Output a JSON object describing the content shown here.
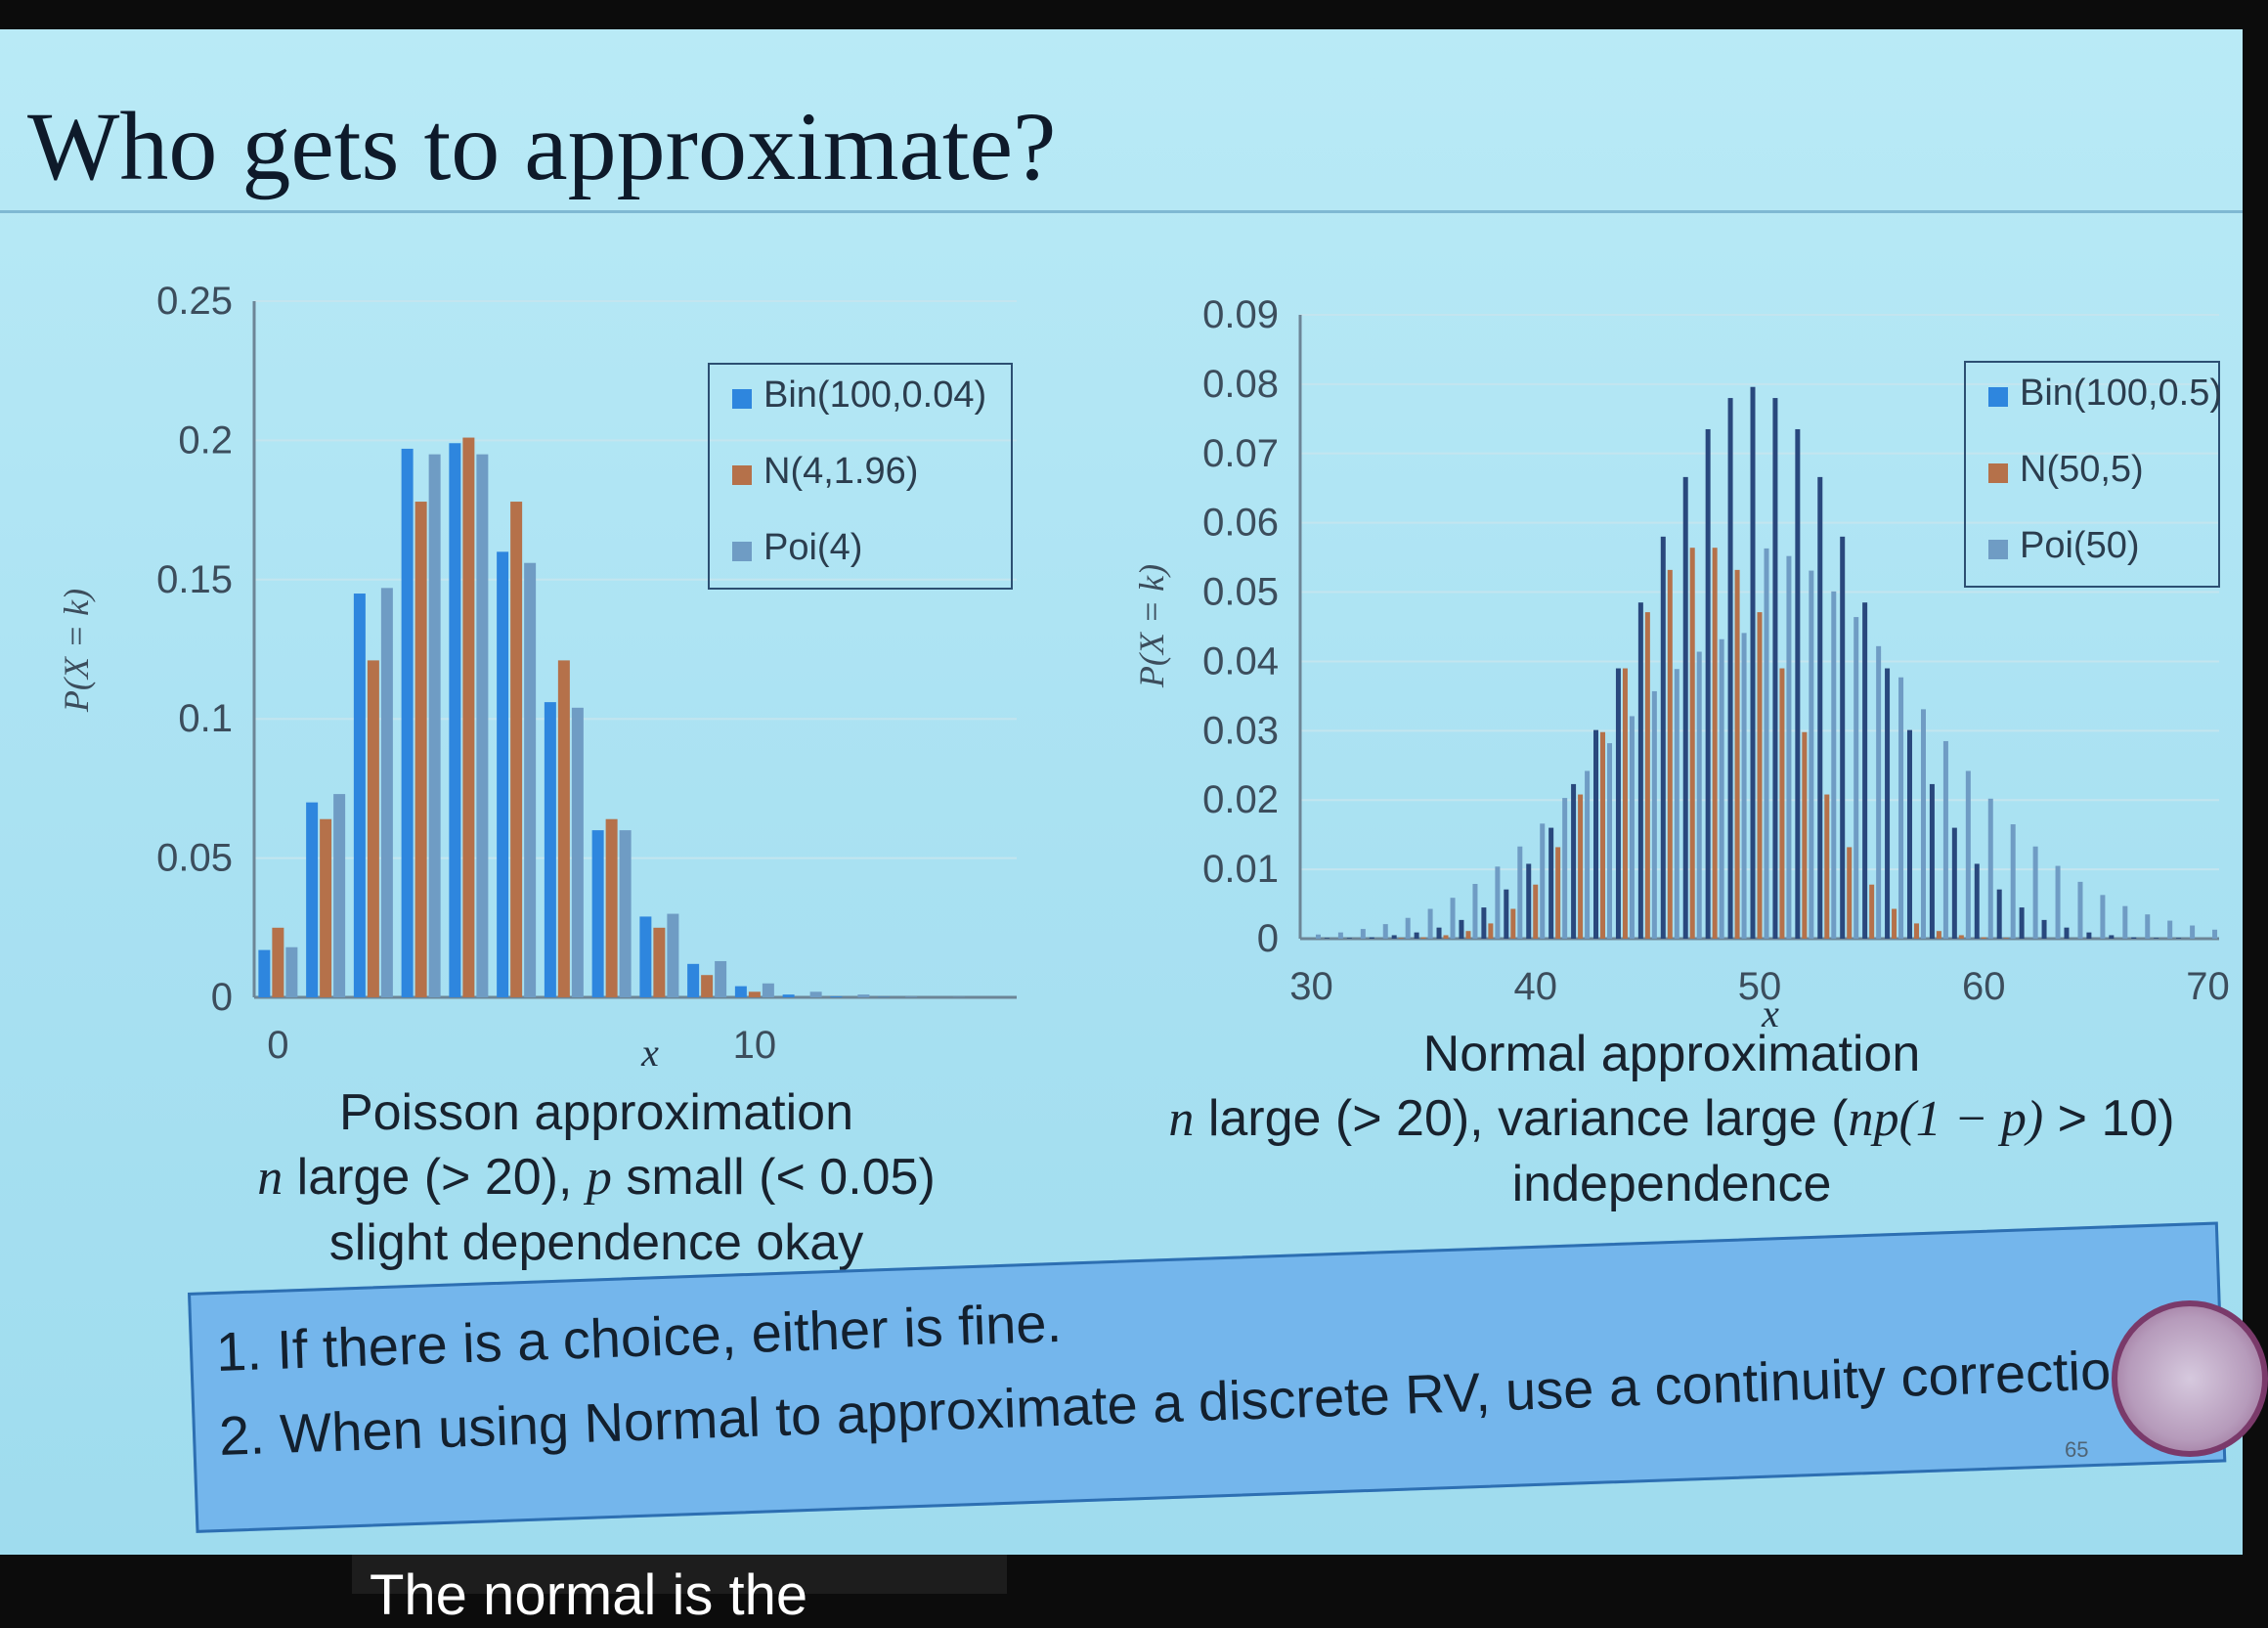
{
  "slide": {
    "title": "Who gets to approximate?",
    "slide_number": "65",
    "captions": {
      "poisson": {
        "line1": "Poisson approximation",
        "line2_n": "n",
        "line2_rest": " large (> 20), ",
        "line2_p": "p",
        "line2_tail": " small (< 0.05)",
        "line3": "slight dependence okay"
      },
      "normal": {
        "line1": "Normal approximation",
        "line2_n": "n",
        "line2_rest": " large (> 20), variance large (",
        "line2_expr": "np(1 − p)",
        "line2_tail": " > 10)",
        "line3": "independence"
      }
    },
    "notes": [
      "1. If there is a choice, either is fine.",
      "2. When using Normal to approximate a discrete RV, use a continuity correction."
    ]
  },
  "video_subtitle": "The normal is the",
  "colors": {
    "series1": "#2e86de",
    "series2": "#b5714a",
    "series3": "#6f9cc4",
    "series1_dark": "#29487d",
    "axis": "#6c8596",
    "grid": "#c3e5ef"
  },
  "chart_data": [
    {
      "type": "bar",
      "title": "",
      "xlabel": "x",
      "ylabel": "P(X = k)",
      "ylim": [
        0,
        0.25
      ],
      "yticks": [
        "0",
        "0.05",
        "0.1",
        "0.15",
        "0.2",
        "0.25"
      ],
      "xtick_labels": [
        "0",
        "10"
      ],
      "x": [
        0,
        1,
        2,
        3,
        4,
        5,
        6,
        7,
        8,
        9,
        10,
        11,
        12,
        13,
        14,
        15
      ],
      "grid": true,
      "legend_position": "top-right",
      "series": [
        {
          "name": "Bin(100,0.04)",
          "values": [
            0.017,
            0.07,
            0.145,
            0.197,
            0.199,
            0.16,
            0.106,
            0.06,
            0.029,
            0.012,
            0.004,
            0.001,
            0.0003,
            0.0001,
            0.0,
            0.0
          ]
        },
        {
          "name": "N(4,1.96)",
          "values": [
            0.025,
            0.064,
            0.121,
            0.178,
            0.201,
            0.178,
            0.121,
            0.064,
            0.025,
            0.008,
            0.002,
            0.0,
            0.0,
            0.0,
            0.0,
            0.0
          ]
        },
        {
          "name": "Poi(4)",
          "values": [
            0.018,
            0.073,
            0.147,
            0.195,
            0.195,
            0.156,
            0.104,
            0.06,
            0.03,
            0.013,
            0.005,
            0.002,
            0.001,
            0.0002,
            0.0001,
            0.0
          ]
        }
      ]
    },
    {
      "type": "bar",
      "title": "",
      "xlabel": "x",
      "ylabel": "P(X = k)",
      "ylim": [
        0,
        0.09
      ],
      "yticks": [
        "0",
        "0.01",
        "0.02",
        "0.03",
        "0.04",
        "0.05",
        "0.06",
        "0.07",
        "0.08",
        "0.09"
      ],
      "xtick_labels": [
        "30",
        "40",
        "50",
        "60",
        "70"
      ],
      "x": [
        30,
        31,
        32,
        33,
        34,
        35,
        36,
        37,
        38,
        39,
        40,
        41,
        42,
        43,
        44,
        45,
        46,
        47,
        48,
        49,
        50,
        51,
        52,
        53,
        54,
        55,
        56,
        57,
        58,
        59,
        60,
        61,
        62,
        63,
        64,
        65,
        66,
        67,
        68,
        69,
        70
      ],
      "grid": true,
      "legend_position": "top-right",
      "series": [
        {
          "name": "Bin(100,0.5)",
          "values": [
            0.0,
            0.0001,
            0.0001,
            0.0002,
            0.0005,
            0.0009,
            0.0016,
            0.0027,
            0.0045,
            0.0071,
            0.0108,
            0.016,
            0.0223,
            0.0301,
            0.039,
            0.0485,
            0.058,
            0.0666,
            0.0735,
            0.078,
            0.0796,
            0.078,
            0.0735,
            0.0666,
            0.058,
            0.0485,
            0.039,
            0.0301,
            0.0223,
            0.016,
            0.0108,
            0.0071,
            0.0045,
            0.0027,
            0.0016,
            0.0009,
            0.0005,
            0.0002,
            0.0001,
            0.0001,
            0.0
          ]
        },
        {
          "name": "N(50,5)",
          "values": [
            0.0,
            0.0,
            0.0,
            0.0,
            0.0001,
            0.0002,
            0.0005,
            0.0011,
            0.0022,
            0.0043,
            0.0078,
            0.0132,
            0.0208,
            0.0298,
            0.039,
            0.0471,
            0.0532,
            0.0564,
            0.0564,
            0.0532,
            0.0471,
            0.039,
            0.0298,
            0.0208,
            0.0132,
            0.0078,
            0.0043,
            0.0022,
            0.0011,
            0.0005,
            0.0002,
            0.0001,
            0.0,
            0.0,
            0.0,
            0.0,
            0.0,
            0.0,
            0.0,
            0.0,
            0.0
          ]
        },
        {
          "name": "Poi(50)",
          "values": [
            0.0006,
            0.0009,
            0.0014,
            0.0021,
            0.003,
            0.0043,
            0.0059,
            0.0079,
            0.0104,
            0.0133,
            0.0166,
            0.0203,
            0.0242,
            0.0282,
            0.0321,
            0.0357,
            0.0389,
            0.0414,
            0.0432,
            0.0441,
            0.0563,
            0.0552,
            0.0531,
            0.0501,
            0.0464,
            0.0422,
            0.0377,
            0.0331,
            0.0285,
            0.0242,
            0.0202,
            0.0165,
            0.0133,
            0.0105,
            0.0082,
            0.0063,
            0.0047,
            0.0035,
            0.0026,
            0.0019,
            0.0013
          ]
        }
      ]
    }
  ]
}
